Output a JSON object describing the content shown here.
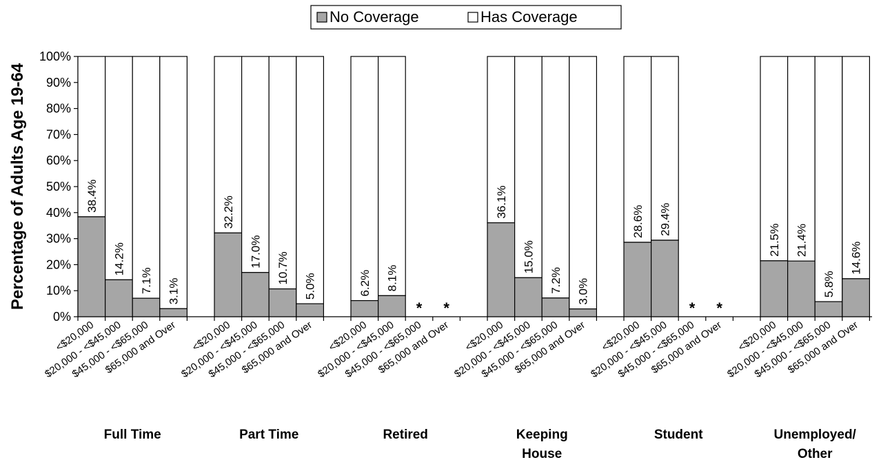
{
  "chart_data": {
    "type": "bar",
    "stacked": true,
    "percent_stacked": true,
    "ylabel": "Percentage of Adults Age 19-64",
    "ylim": [
      0,
      100
    ],
    "yticks": [
      "0%",
      "10%",
      "20%",
      "30%",
      "40%",
      "50%",
      "60%",
      "70%",
      "80%",
      "90%",
      "100%"
    ],
    "legend": {
      "position": "top-center",
      "entries": [
        {
          "name": "No Coverage",
          "color": "#a6a6a6"
        },
        {
          "name": "Has Coverage",
          "color": "#ffffff"
        }
      ]
    },
    "colors": {
      "no_coverage": "#a6a6a6",
      "has_coverage": "#ffffff"
    },
    "categories": [
      "<$20,000",
      "$20,000 - <$45,000",
      "$45,000 - <$65,000",
      "$65,000 and Over"
    ],
    "groups": [
      {
        "label_lines": [
          "Full Time"
        ],
        "no_coverage": [
          38.4,
          14.2,
          7.1,
          3.1
        ],
        "data_labels": [
          "38.4%",
          "14.2%",
          "7.1%",
          "3.1%"
        ]
      },
      {
        "label_lines": [
          "Part Time"
        ],
        "no_coverage": [
          32.2,
          17.0,
          10.7,
          5.0
        ],
        "data_labels": [
          "32.2%",
          "17.0%",
          "10.7%",
          "5.0%"
        ]
      },
      {
        "label_lines": [
          "Retired"
        ],
        "no_coverage": [
          6.2,
          8.1,
          null,
          null
        ],
        "data_labels": [
          "6.2%",
          "8.1%",
          "*",
          "*"
        ]
      },
      {
        "label_lines": [
          "Keeping",
          "House"
        ],
        "no_coverage": [
          36.1,
          15.0,
          7.2,
          3.0
        ],
        "data_labels": [
          "36.1%",
          "15.0%",
          "7.2%",
          "3.0%"
        ]
      },
      {
        "label_lines": [
          "Student"
        ],
        "no_coverage": [
          28.6,
          29.4,
          null,
          null
        ],
        "data_labels": [
          "28.6%",
          "29.4%",
          "*",
          "*"
        ]
      },
      {
        "label_lines": [
          "Unemployed/",
          "Other"
        ],
        "no_coverage": [
          21.5,
          21.4,
          5.8,
          14.6
        ],
        "data_labels": [
          "21.5%",
          "21.4%",
          "5.8%",
          "14.6%"
        ]
      }
    ]
  }
}
